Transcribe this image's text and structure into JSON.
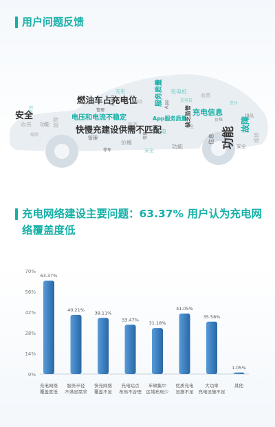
{
  "section1": {
    "title": "用户问题反馈"
  },
  "wordcloud": {
    "big_words": [
      "燃油车占充电位",
      "快慢充建设供需不匹配",
      "电压和电流不稳定",
      "充电信息",
      "功能",
      "安全",
      "服务质量",
      "故障",
      "App服务质量",
      "缺乏监管"
    ],
    "filler_words": [
      "安全",
      "功能",
      "故障",
      "管理",
      "充电",
      "价格",
      "服务",
      "App",
      "充电桩",
      "安全",
      "收费",
      "信息",
      "支付",
      "排队",
      "维修",
      "停车"
    ]
  },
  "section2": {
    "title": "充电网络建设主要问题：63.37% 用户认为充电网络覆盖度低"
  },
  "chart_data": {
    "type": "bar",
    "categories": [
      [
        "充电网络",
        "覆盖度低"
      ],
      [
        "服务半径",
        "不满足需求"
      ],
      [
        "快充网络",
        "覆盖不足"
      ],
      [
        "充电站点",
        "布局不合理"
      ],
      [
        "车辆集中",
        "区域布局少"
      ],
      [
        "优质充电",
        "设施不足"
      ],
      [
        "大功率",
        "充电设施不足"
      ],
      [
        "其他"
      ]
    ],
    "values": [
      63.37,
      40.21,
      38.11,
      33.47,
      31.18,
      41.05,
      35.58,
      1.05
    ],
    "value_labels": [
      "63.37%",
      "40.21%",
      "38.11%",
      "33.47%",
      "31.18%",
      "41.05%",
      "35.58%",
      "1.05%"
    ],
    "y_ticks": [
      "70%",
      "56%",
      "42%",
      "28%",
      "14%",
      "0%"
    ],
    "ylim": [
      0,
      70
    ],
    "grid": false,
    "bar_color": "#3b7fc0"
  }
}
